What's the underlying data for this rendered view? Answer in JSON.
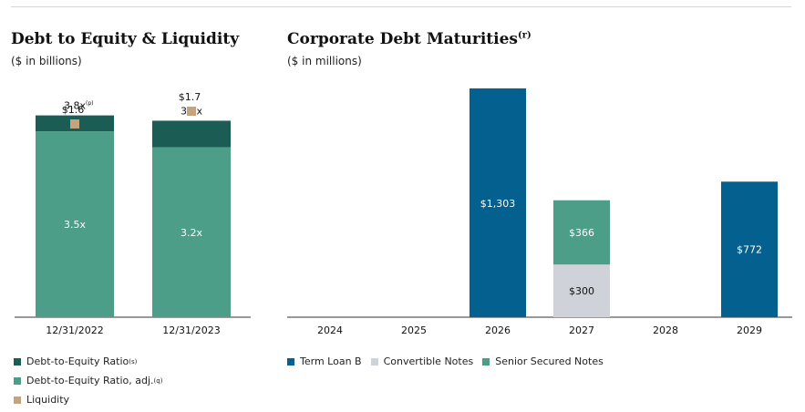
{
  "colors": {
    "dark_teal": "#1b5c55",
    "teal": "#4c9e88",
    "tan": "#c4a37f",
    "navy": "#04618f",
    "light_gray": "#cfd2d8"
  },
  "left": {
    "title": "Debt to Equity & Liquidity",
    "subtitle": "($ in billions)",
    "legend": [
      {
        "label": "Debt-to-Equity Ratio",
        "sup": "(s)",
        "color": "#1b5c55"
      },
      {
        "label": "Debt-to-Equity Ratio, adj.",
        "sup": "(q)",
        "color": "#4c9e88"
      },
      {
        "label": "Liquidity",
        "sup": "",
        "color": "#c4a37f"
      }
    ]
  },
  "right": {
    "title": "Corporate Debt Maturities",
    "title_sup": "(r)",
    "subtitle": "($ in millions)",
    "legend": [
      {
        "label": "Term Loan B",
        "color": "#04618f"
      },
      {
        "label": "Convertible Notes",
        "color": "#cfd2d8"
      },
      {
        "label": "Senior Secured Notes",
        "color": "#4c9e88"
      }
    ]
  },
  "chart_data": [
    {
      "type": "bar",
      "title": "Debt to Equity & Liquidity",
      "subtitle": "($ in billions)",
      "categories": [
        "12/31/2022",
        "12/31/2023"
      ],
      "series": [
        {
          "name": "Debt-to-Equity Ratio, adj.",
          "values": [
            3.5,
            3.2
          ],
          "labels": [
            "3.5x",
            "3.2x"
          ],
          "color": "#4c9e88"
        },
        {
          "name": "Debt-to-Equity Ratio",
          "values": [
            3.8,
            3.7
          ],
          "labels": [
            "3.8x",
            "3.7x"
          ],
          "color": "#1b5c55"
        },
        {
          "name": "Liquidity",
          "values": [
            1.6,
            1.7
          ],
          "labels": [
            "$1.6",
            "$1.7"
          ],
          "label_sups": [
            "(p)",
            ""
          ],
          "color": "#c4a37f",
          "marker": "square"
        }
      ],
      "ylim": [
        0,
        4.6
      ]
    },
    {
      "type": "bar",
      "stacked": true,
      "title": "Corporate Debt Maturities",
      "subtitle": "($ in millions)",
      "categories": [
        "2024",
        "2025",
        "2026",
        "2027",
        "2028",
        "2029"
      ],
      "series": [
        {
          "name": "Term Loan B",
          "values": [
            0,
            0,
            1303,
            0,
            0,
            772
          ],
          "labels": [
            "",
            "",
            "$1,303",
            "",
            "",
            "$772"
          ],
          "color": "#04618f"
        },
        {
          "name": "Convertible Notes",
          "values": [
            0,
            0,
            0,
            300,
            0,
            0
          ],
          "labels": [
            "",
            "",
            "",
            "$300",
            "",
            ""
          ],
          "color": "#cfd2d8"
        },
        {
          "name": "Senior Secured Notes",
          "values": [
            0,
            0,
            0,
            366,
            0,
            0
          ],
          "labels": [
            "",
            "",
            "",
            "$366",
            "",
            ""
          ],
          "color": "#4c9e88"
        }
      ],
      "ylim": [
        0,
        1303
      ]
    }
  ]
}
